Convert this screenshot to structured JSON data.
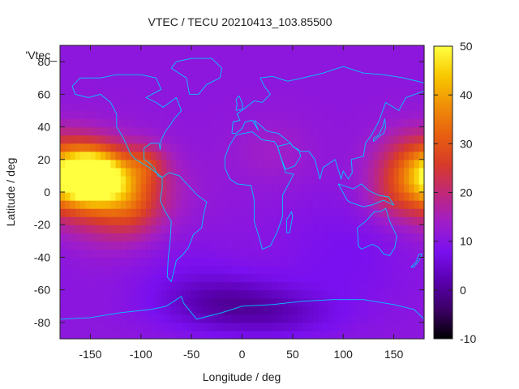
{
  "chart_data": {
    "type": "heatmap",
    "title": "VTEC / TECU 20210413_103.85500",
    "xlabel": "Longitude / deg",
    "ylabel": "Latitude / deg",
    "key_label": "'Vtec_",
    "xlim": [
      -180,
      180
    ],
    "ylim": [
      -90,
      90
    ],
    "x_ticks": [
      "-150",
      "-100",
      "-50",
      "0",
      "50",
      "100",
      "150"
    ],
    "y_ticks": [
      "-80",
      "-60",
      "-40",
      "-20",
      "0",
      "20",
      "40",
      "60",
      "80"
    ],
    "colorbar": {
      "range": [
        -10,
        50
      ],
      "ticks": [
        "-10",
        "0",
        "10",
        "20",
        "30",
        "40",
        "50"
      ],
      "palette": [
        "#000000",
        "#3b0064",
        "#5a00b0",
        "#7a10f0",
        "#a01ec8",
        "#c02878",
        "#d83c28",
        "#e86010",
        "#f09008",
        "#f8c800",
        "#ffff40"
      ]
    },
    "background_vtec": 11,
    "anomalies": [
      {
        "lon": -148,
        "lat": 10,
        "dlon": 22,
        "dlat": 11,
        "amp": 37
      },
      {
        "lon": -125,
        "lat": 2,
        "dlon": 40,
        "dlat": 17,
        "amp": 13
      },
      {
        "lon": -110,
        "lat": -8,
        "dlon": 20,
        "dlat": 14,
        "amp": 8
      },
      {
        "lon": -140,
        "lat": 0,
        "dlon": 30,
        "dlat": 22,
        "amp": 6
      },
      {
        "lon": -95,
        "lat": 18,
        "dlon": 14,
        "dlat": 8,
        "amp": 9
      },
      {
        "lon": 175,
        "lat": 12,
        "dlon": 28,
        "dlat": 16,
        "amp": 22
      },
      {
        "lon": 150,
        "lat": -5,
        "dlon": 20,
        "dlat": 10,
        "amp": 4
      },
      {
        "lon": 30,
        "lat": 25,
        "dlon": 30,
        "dlat": 15,
        "amp": 3
      },
      {
        "lon": -20,
        "lat": -68,
        "dlon": 45,
        "dlat": 12,
        "amp": -9
      },
      {
        "lon": 40,
        "lat": -75,
        "dlon": 40,
        "dlat": 10,
        "amp": -5
      },
      {
        "lon": 100,
        "lat": -40,
        "dlon": 50,
        "dlat": 25,
        "amp": -3
      },
      {
        "lon": -60,
        "lat": -45,
        "dlon": 40,
        "dlat": 15,
        "amp": -2
      }
    ],
    "coastline_color": "#00c8ff",
    "grid": false,
    "legend": "none"
  }
}
